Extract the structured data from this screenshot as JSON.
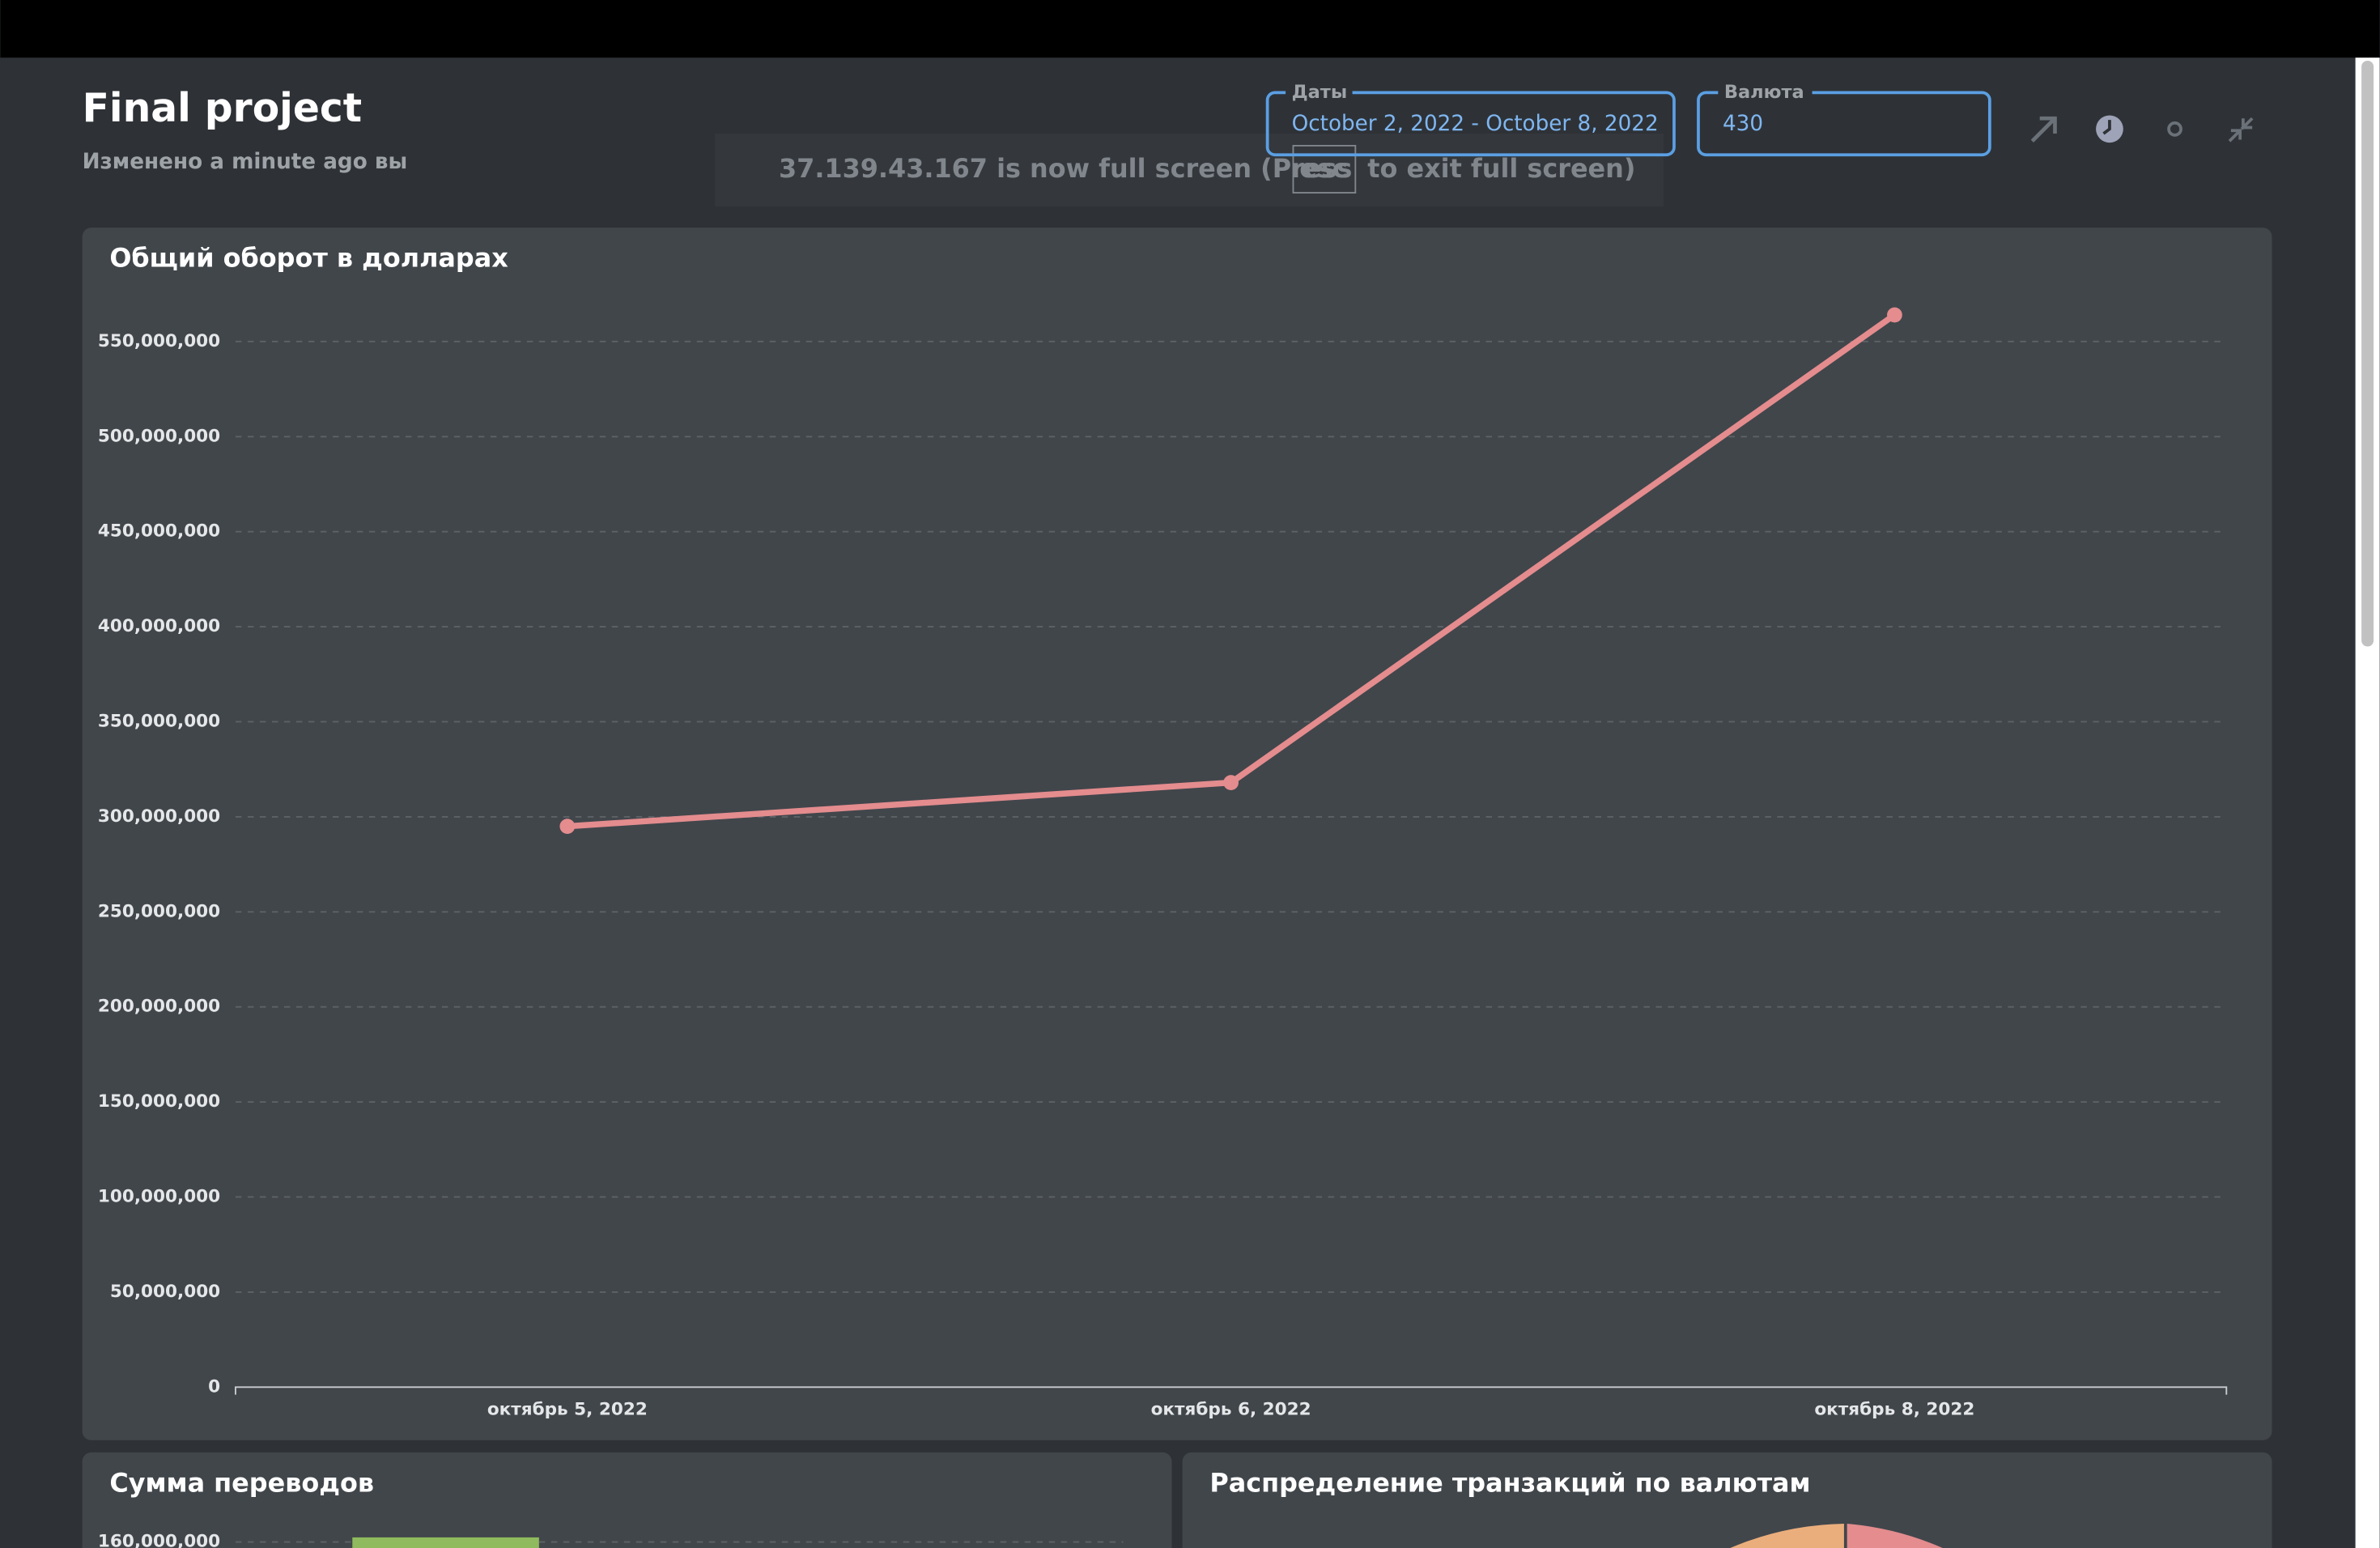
{
  "header": {
    "title": "Final project",
    "subtitle": "Изменено a minute ago вы"
  },
  "filters": [
    {
      "label": "Даты",
      "value": "October 2, 2022 - October 8, 2022"
    },
    {
      "label": "Валюта",
      "value": "430"
    }
  ],
  "notice": {
    "before": "37.139.43.167 is now full screen (Press",
    "key": "esc",
    "after": "to exit full screen)"
  },
  "chart_data": {
    "type": "line",
    "title": "Общий оборот в долларах",
    "categories": [
      "октябрь 5, 2022",
      "октябрь 6, 2022",
      "октябрь 8, 2022"
    ],
    "series": [
      {
        "name": "Общий оборот",
        "color": "#e48c8e",
        "values": [
          295000000,
          318000000,
          564000000
        ]
      }
    ],
    "ylim": [
      0,
      570000000
    ],
    "yticks": [
      0,
      {
        "value": 50000000,
        "label": "50,000,000"
      },
      {
        "value": 100000000,
        "label": "100,000,000"
      },
      {
        "value": 150000000,
        "label": "150,000,000"
      },
      {
        "value": 200000000,
        "label": "200,000,000"
      },
      {
        "value": 250000000,
        "label": "250,000,000"
      },
      {
        "value": 300000000,
        "label": "300,000,000"
      },
      {
        "value": 350000000,
        "label": "350,000,000"
      },
      {
        "value": 400000000,
        "label": "400,000,000"
      },
      {
        "value": 450000000,
        "label": "450,000,000"
      },
      {
        "value": 500000000,
        "label": "500,000,000"
      },
      {
        "value": 550000000,
        "label": "550,000,000"
      }
    ],
    "grid": true
  },
  "panels": [
    {
      "title": "Сумма переводов",
      "tick": "160,000,000"
    },
    {
      "title": "Распределение транзакций по валютам"
    }
  ]
}
